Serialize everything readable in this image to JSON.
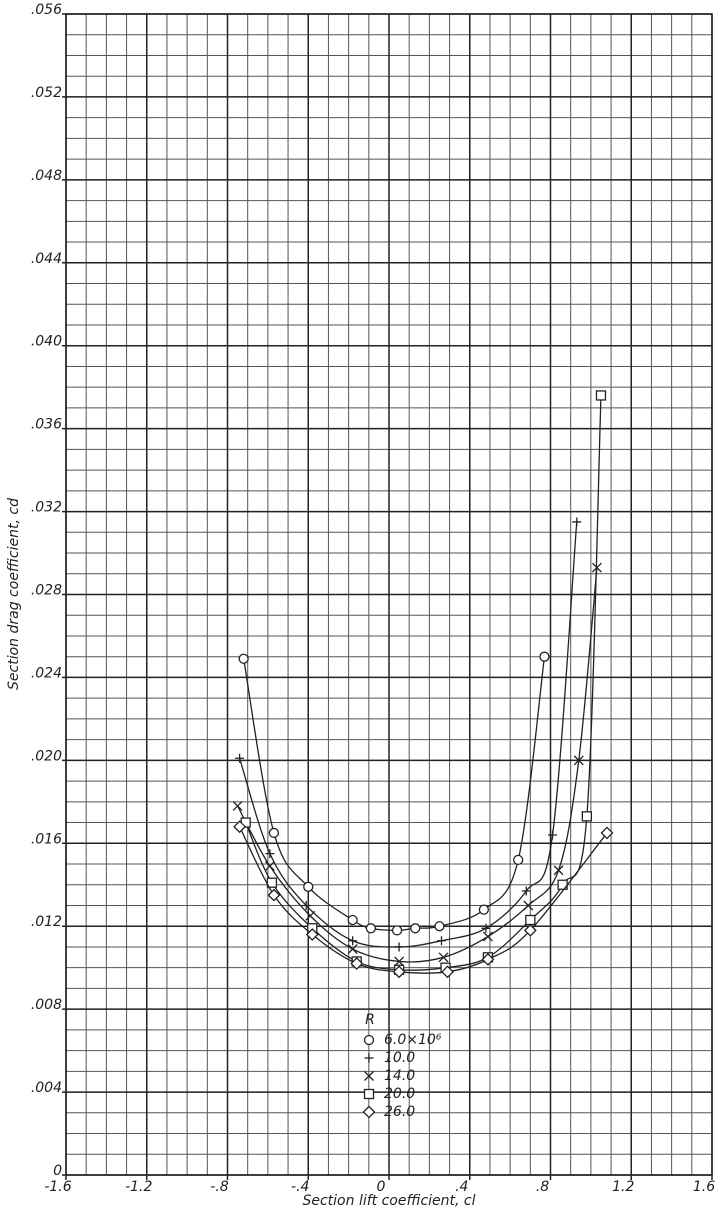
{
  "chart_data": {
    "type": "scatter",
    "x_label": "Section lift coefficient, cl",
    "y_label": "Section drag coefficient, cd",
    "legend_title": "R",
    "legend_position": "lower center",
    "grid": true,
    "xlim": [
      -1.6,
      1.6
    ],
    "ylim": [
      0,
      0.056
    ],
    "xticks": [
      {
        "value": -1.6,
        "label": "-1.6"
      },
      {
        "value": -1.2,
        "label": "-1.2"
      },
      {
        "value": -0.8,
        "label": "-.8"
      },
      {
        "value": -0.4,
        "label": "-.4"
      },
      0,
      {
        "value": 0.4,
        "label": ".4"
      },
      {
        "value": 0.8,
        "label": ".8"
      },
      {
        "value": 1.2,
        "label": "1.2"
      },
      {
        "value": 1.6,
        "label": "1.6"
      }
    ],
    "yticks": [
      0,
      {
        "value": 0.004,
        "label": ".004"
      },
      {
        "value": 0.008,
        "label": ".008"
      },
      {
        "value": 0.012,
        "label": ".012"
      },
      {
        "value": 0.016,
        "label": ".016"
      },
      {
        "value": 0.02,
        "label": ".020"
      },
      {
        "value": 0.024,
        "label": ".024"
      },
      {
        "value": 0.028,
        "label": ".028"
      },
      {
        "value": 0.032,
        "label": ".032"
      },
      {
        "value": 0.036,
        "label": ".036"
      },
      {
        "value": 0.04,
        "label": ".040"
      },
      {
        "value": 0.044,
        "label": ".044"
      },
      {
        "value": 0.048,
        "label": ".048"
      },
      {
        "value": 0.052,
        "label": ".052"
      },
      {
        "value": 0.056,
        "label": ".056"
      }
    ],
    "series": [
      {
        "name": "6.0×10⁶",
        "marker": "circle",
        "color": "#222222",
        "x": [
          -0.72,
          -0.57,
          -0.4,
          -0.18,
          -0.09,
          0.04,
          0.13,
          0.25,
          0.47,
          0.64,
          0.77
        ],
        "values": [
          0.0249,
          0.0165,
          0.0139,
          0.0123,
          0.0119,
          0.0118,
          0.0119,
          0.012,
          0.0128,
          0.0152,
          0.025
        ]
      },
      {
        "name": "10.0",
        "marker": "plus",
        "color": "#222222",
        "x": [
          -0.74,
          -0.59,
          -0.41,
          -0.18,
          0.05,
          0.26,
          0.48,
          0.68,
          0.81,
          0.93
        ],
        "values": [
          0.0201,
          0.0155,
          0.013,
          0.0113,
          0.011,
          0.0113,
          0.0119,
          0.0137,
          0.0164,
          0.0315
        ]
      },
      {
        "name": "14.0",
        "marker": "cross",
        "color": "#222222",
        "x": [
          -0.75,
          -0.59,
          -0.39,
          -0.18,
          0.05,
          0.27,
          0.49,
          0.69,
          0.84,
          0.94,
          1.03
        ],
        "values": [
          0.0178,
          0.0149,
          0.0125,
          0.0109,
          0.0103,
          0.0105,
          0.0115,
          0.013,
          0.0147,
          0.02,
          0.0293
        ]
      },
      {
        "name": "20.0",
        "marker": "square",
        "color": "#222222",
        "x": [
          -0.71,
          -0.58,
          -0.38,
          -0.16,
          0.05,
          0.28,
          0.49,
          0.7,
          0.86,
          0.98,
          1.05
        ],
        "values": [
          0.017,
          0.0141,
          0.0119,
          0.0103,
          0.0099,
          0.01,
          0.0105,
          0.0123,
          0.014,
          0.0173,
          0.0376
        ]
      },
      {
        "name": "26.0",
        "marker": "diamond",
        "color": "#222222",
        "x": [
          -0.74,
          -0.57,
          -0.38,
          -0.16,
          0.05,
          0.29,
          0.49,
          0.7,
          1.08
        ],
        "values": [
          0.0168,
          0.0135,
          0.0116,
          0.0102,
          0.0098,
          0.0098,
          0.0104,
          0.0118,
          0.0165
        ]
      }
    ]
  }
}
